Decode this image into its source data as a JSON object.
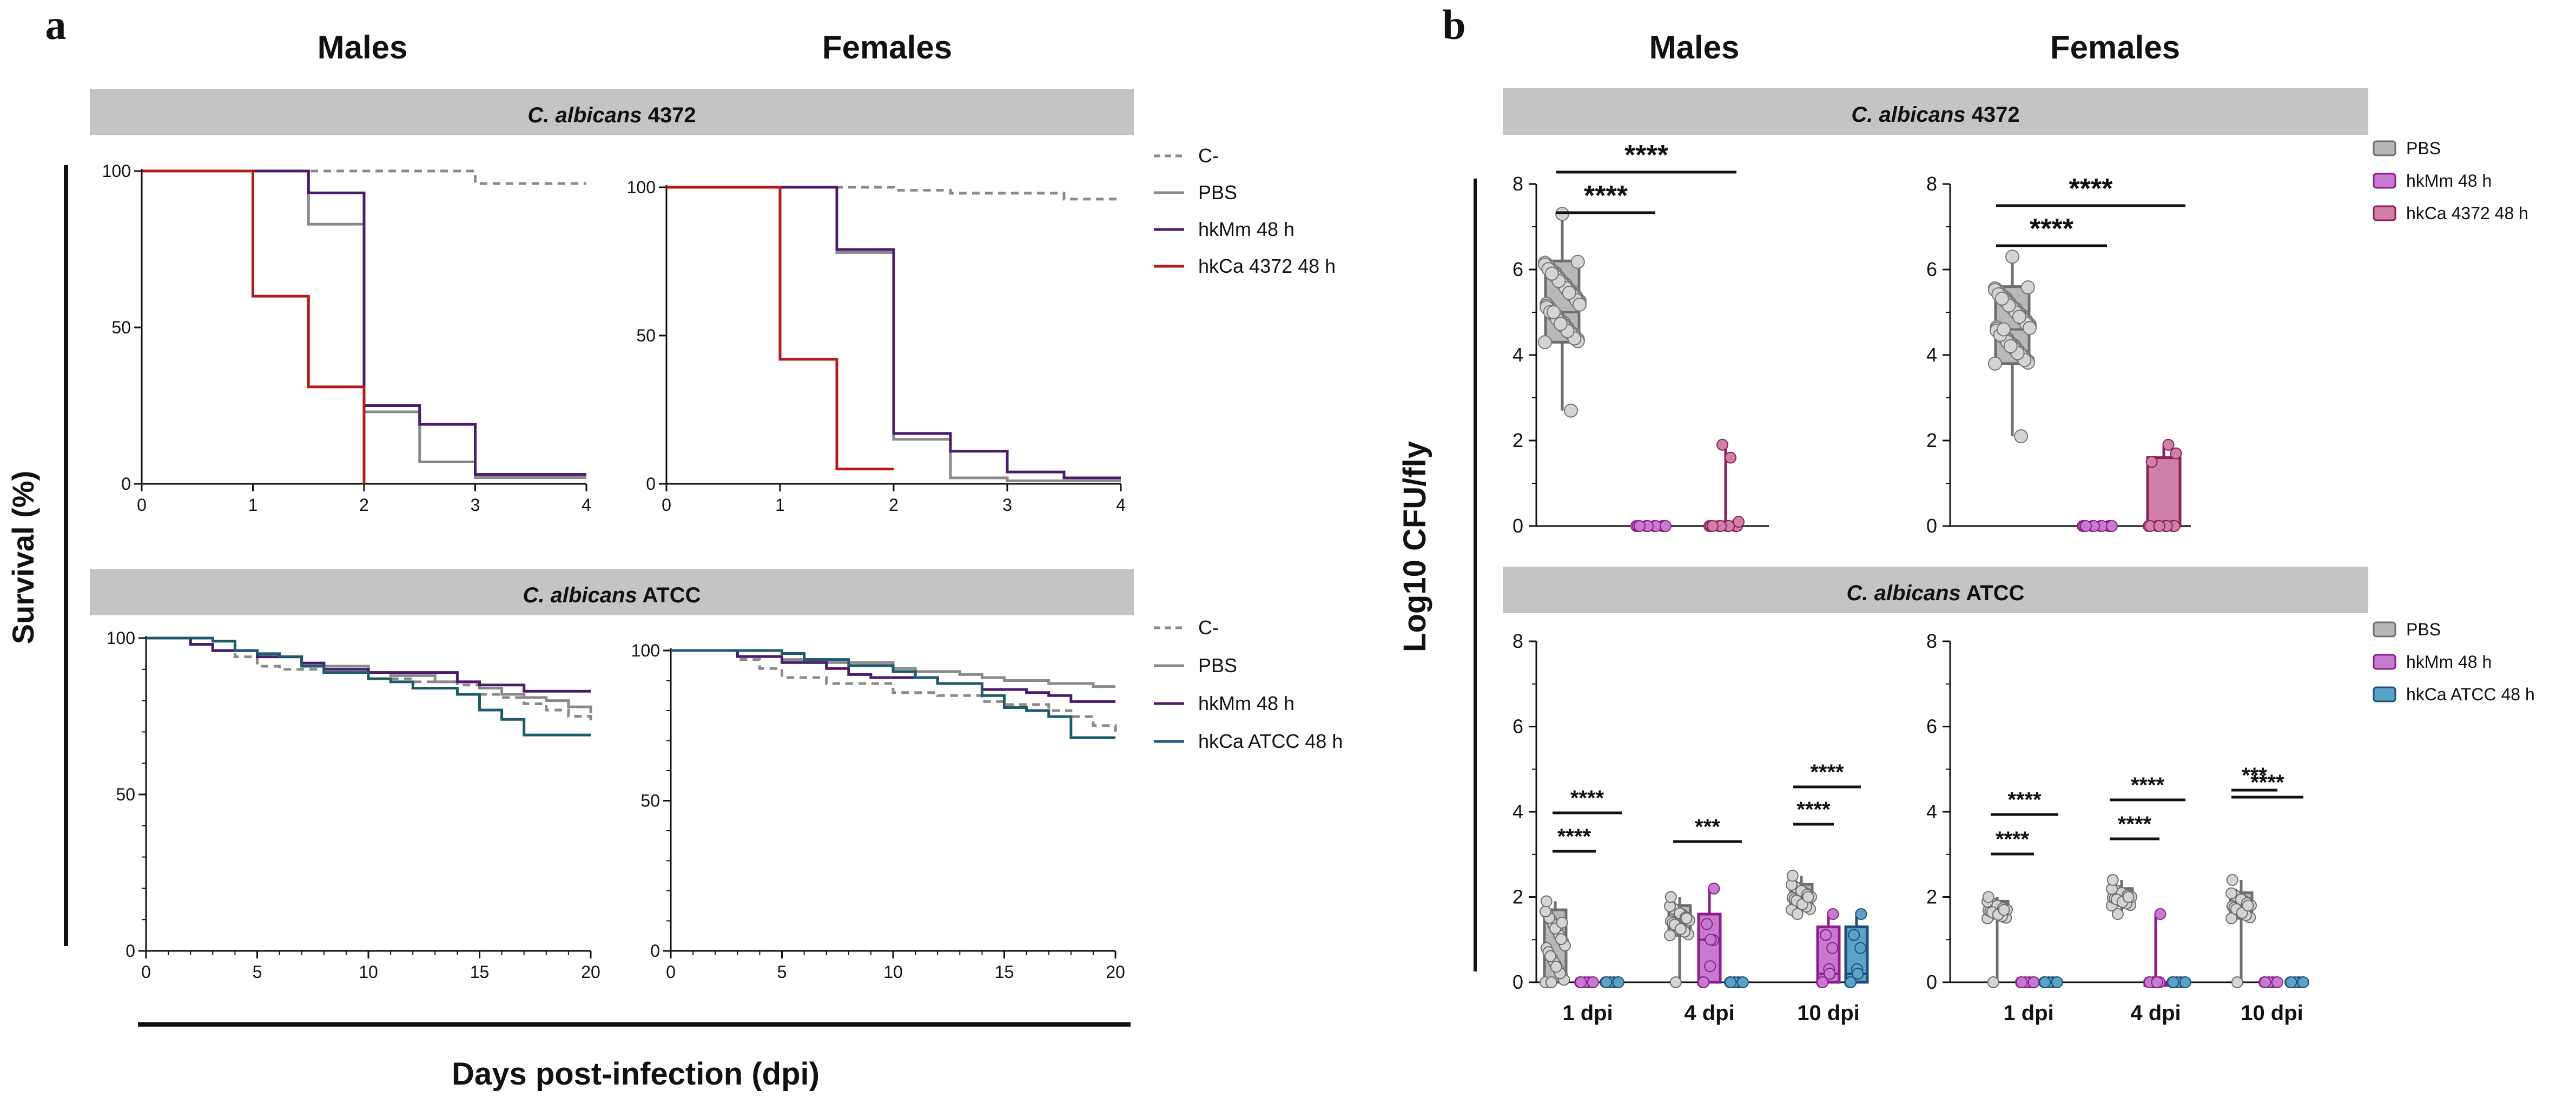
{
  "colors": {
    "control": "#8a8a8a",
    "pbs": "#8a8a8a",
    "hkmm": "#4a1a6b",
    "hkca4372": "#b31b1b",
    "hkcaatcc": "#1f5a6b",
    "cfu_pbs_fill": "#b8b8b8",
    "cfu_pbs_edge": "#6e6e6e",
    "cfu_hkmm_fill": "#c67bd1",
    "cfu_hkmm_edge": "#8e1e8e",
    "cfu_hkca4372_fill": "#d07fa6",
    "cfu_hkca4372_edge": "#8e1e5e",
    "cfu_hkcaatcc_fill": "#5aa3c6",
    "cfu_hkcaatcc_edge": "#1f4f7a",
    "banner": "#c4c4c4"
  },
  "panel_a": {
    "label": "a",
    "col_titles": [
      "Males",
      "Females"
    ],
    "banner_top": {
      "italic": "C. albicans",
      "rest": " 4372"
    },
    "banner_bottom": {
      "italic": "C. albicans",
      "rest": " ATCC"
    },
    "y_axis_title": "Survival (%)",
    "x_axis_title": "Days post-infection (dpi)",
    "legend_top": [
      "C-",
      "PBS",
      "hkMm 48 h",
      "hkCa 4372 48 h"
    ],
    "legend_bottom": [
      "C-",
      "PBS",
      "hkMm 48 h",
      "hkCa ATCC 48 h"
    ]
  },
  "panel_b": {
    "label": "b",
    "col_titles": [
      "Males",
      "Females"
    ],
    "banner_top": {
      "italic": "C. albicans",
      "rest": " 4372"
    },
    "banner_bottom": {
      "italic": "C. albicans",
      "rest": " ATCC"
    },
    "y_axis_title": "Log10 CFU/fly",
    "legend_top": [
      "PBS",
      "hkMm 48 h",
      "hkCa 4372 48 h"
    ],
    "legend_bottom": [
      "PBS",
      "hkMm 48 h",
      "hkCa ATCC 48 h"
    ]
  },
  "chart_data": [
    {
      "id": "a_m_4372",
      "type": "line",
      "title": "Males — C. albicans 4372",
      "xlabel": "Days post-infection (dpi)",
      "ylabel": "Survival (%)",
      "xlim": [
        0,
        4
      ],
      "ylim": [
        0,
        100
      ],
      "xticks": [
        0,
        1,
        2,
        3,
        4
      ],
      "yticks": [
        0,
        50,
        100
      ],
      "series": [
        {
          "name": "C-",
          "step": true,
          "dashed": true,
          "x": [
            0,
            3,
            3,
            4
          ],
          "y": [
            100,
            100,
            96,
            96
          ]
        },
        {
          "name": "PBS",
          "step": true,
          "x": [
            0,
            1.5,
            2,
            2.5,
            3,
            4
          ],
          "y": [
            100,
            83,
            23,
            7,
            2,
            2
          ]
        },
        {
          "name": "hkMm 48 h",
          "step": true,
          "x": [
            0,
            1.5,
            2,
            2.5,
            3,
            4
          ],
          "y": [
            100,
            93,
            25,
            19,
            3,
            3
          ]
        },
        {
          "name": "hkCa 4372 48 h",
          "step": true,
          "x": [
            0,
            1,
            1.5,
            2
          ],
          "y": [
            100,
            60,
            31,
            0
          ]
        }
      ]
    },
    {
      "id": "a_f_4372",
      "type": "line",
      "title": "Females — C. albicans 4372",
      "xlabel": "Days post-infection (dpi)",
      "ylabel": "Survival (%)",
      "xlim": [
        0,
        4
      ],
      "ylim": [
        0,
        100
      ],
      "xticks": [
        0,
        1,
        2,
        3,
        4
      ],
      "yticks": [
        0,
        50,
        100
      ],
      "series": [
        {
          "name": "C-",
          "step": true,
          "dashed": true,
          "x": [
            0,
            2,
            2.5,
            3.5,
            4
          ],
          "y": [
            100,
            99,
            98,
            96,
            96
          ]
        },
        {
          "name": "PBS",
          "step": true,
          "x": [
            0,
            1.5,
            2,
            2.5,
            3,
            4
          ],
          "y": [
            100,
            78,
            15,
            2,
            1,
            1
          ]
        },
        {
          "name": "hkMm 48 h",
          "step": true,
          "x": [
            0,
            1.5,
            2,
            2.5,
            3,
            3.5,
            4
          ],
          "y": [
            100,
            79,
            17,
            11,
            4,
            2,
            2
          ]
        },
        {
          "name": "hkCa 4372 48 h",
          "step": true,
          "x": [
            0,
            1,
            1.5,
            2
          ],
          "y": [
            100,
            42,
            5,
            5
          ]
        }
      ]
    },
    {
      "id": "a_m_atcc",
      "type": "line",
      "title": "Males — C. albicans ATCC",
      "xlabel": "Days post-infection (dpi)",
      "ylabel": "Survival (%)",
      "xlim": [
        0,
        20
      ],
      "ylim": [
        0,
        100
      ],
      "xticks": [
        0,
        5,
        10,
        15,
        20
      ],
      "yticks": [
        0,
        50,
        100
      ],
      "series": [
        {
          "name": "C-",
          "step": true,
          "dashed": true,
          "x": [
            0,
            2,
            3,
            4,
            5,
            6,
            8,
            10,
            12,
            14,
            15,
            16,
            17,
            18,
            19,
            20
          ],
          "y": [
            100,
            98,
            96,
            94,
            91,
            90,
            89,
            87,
            86,
            85,
            82,
            81,
            79,
            77,
            75,
            73
          ]
        },
        {
          "name": "PBS",
          "step": true,
          "x": [
            0,
            2,
            3,
            5,
            7,
            8,
            10,
            11,
            13,
            15,
            16,
            17,
            18,
            19,
            20
          ],
          "y": [
            100,
            98,
            96,
            94,
            92,
            91,
            89,
            88,
            86,
            84,
            82,
            81,
            80,
            78,
            76
          ]
        },
        {
          "name": "hkMm 48 h",
          "step": true,
          "x": [
            0,
            2,
            3,
            5,
            7,
            8,
            10,
            14,
            15,
            17,
            20
          ],
          "y": [
            100,
            98,
            96,
            94,
            92,
            90,
            89,
            86,
            85,
            83,
            83
          ]
        },
        {
          "name": "hkCa ATCC 48 h",
          "step": true,
          "x": [
            0,
            3,
            4,
            5,
            6,
            7,
            8,
            10,
            11,
            12,
            14,
            15,
            16,
            17,
            20
          ],
          "y": [
            100,
            99,
            96,
            95,
            94,
            91,
            89,
            87,
            86,
            84,
            82,
            77,
            74,
            69,
            69
          ]
        }
      ]
    },
    {
      "id": "a_f_atcc",
      "type": "line",
      "title": "Females — C. albicans ATCC",
      "xlabel": "Days post-infection (dpi)",
      "ylabel": "Survival (%)",
      "xlim": [
        0,
        20
      ],
      "ylim": [
        0,
        100
      ],
      "xticks": [
        0,
        5,
        10,
        15,
        20
      ],
      "yticks": [
        0,
        50,
        100
      ],
      "series": [
        {
          "name": "C-",
          "step": true,
          "dashed": true,
          "x": [
            0,
            3,
            4,
            5,
            7,
            10,
            12,
            14,
            15,
            17,
            18,
            19,
            20
          ],
          "y": [
            100,
            97,
            94,
            91,
            89,
            86,
            85,
            83,
            82,
            80,
            78,
            75,
            73
          ]
        },
        {
          "name": "PBS",
          "step": true,
          "x": [
            0,
            3,
            5,
            7,
            10,
            11,
            13,
            14,
            15,
            17,
            19,
            20
          ],
          "y": [
            100,
            98,
            97,
            96,
            94,
            93,
            92,
            91,
            90,
            89,
            88,
            88
          ]
        },
        {
          "name": "hkMm 48 h",
          "step": true,
          "x": [
            0,
            3,
            5,
            7,
            8,
            9,
            12,
            14,
            16,
            17,
            18,
            20
          ],
          "y": [
            100,
            98,
            96,
            94,
            92,
            91,
            89,
            87,
            86,
            85,
            83,
            83
          ]
        },
        {
          "name": "hkCa ATCC 48 h",
          "step": true,
          "x": [
            0,
            5,
            6,
            8,
            10,
            11,
            12,
            14,
            15,
            16,
            17,
            18,
            20
          ],
          "y": [
            100,
            99,
            97,
            95,
            93,
            91,
            89,
            85,
            81,
            80,
            78,
            71,
            71
          ]
        }
      ]
    },
    {
      "id": "b_m_4372",
      "type": "box",
      "title": "Males — C. albicans 4372",
      "ylabel": "Log10 CFU/fly",
      "ylim": [
        0,
        8
      ],
      "yticks": [
        0,
        2,
        4,
        6,
        8
      ],
      "groups": [
        {
          "name": "PBS",
          "min": 2.7,
          "q1": 4.3,
          "median": 5.0,
          "q3": 6.2,
          "max": 7.3
        },
        {
          "name": "hkMm 48 h",
          "min": 0,
          "q1": 0,
          "median": 0,
          "q3": 0,
          "max": 0
        },
        {
          "name": "hkCa 4372 48 h",
          "min": 0,
          "q1": 0,
          "median": 0,
          "q3": 0.1,
          "max": 1.9
        }
      ],
      "significance": [
        {
          "groups": [
            1,
            2
          ],
          "label": "****"
        },
        {
          "groups": [
            1,
            3
          ],
          "label": "****"
        }
      ]
    },
    {
      "id": "b_f_4372",
      "type": "box",
      "title": "Females — C. albicans 4372",
      "ylabel": "Log10 CFU/fly",
      "ylim": [
        0,
        8
      ],
      "yticks": [
        0,
        2,
        4,
        6,
        8
      ],
      "groups": [
        {
          "name": "PBS",
          "min": 2.1,
          "q1": 3.8,
          "median": 4.6,
          "q3": 5.6,
          "max": 6.3
        },
        {
          "name": "hkMm 48 h",
          "min": 0,
          "q1": 0,
          "median": 0,
          "q3": 0,
          "max": 0
        },
        {
          "name": "hkCa 4372 48 h",
          "min": 0,
          "q1": 0,
          "median": 0,
          "q3": 1.6,
          "max": 1.9
        }
      ],
      "significance": [
        {
          "groups": [
            1,
            2
          ],
          "label": "****"
        },
        {
          "groups": [
            1,
            3
          ],
          "label": "****"
        }
      ]
    },
    {
      "id": "b_m_atcc",
      "type": "box",
      "title": "Males — C. albicans ATCC",
      "ylabel": "Log10 CFU/fly",
      "ylim": [
        0,
        8
      ],
      "yticks": [
        0,
        2,
        4,
        6,
        8
      ],
      "categories": [
        "1 dpi",
        "4 dpi",
        "10 dpi"
      ],
      "series": [
        {
          "name": "PBS",
          "boxes": [
            {
              "min": 0,
              "q1": 0,
              "median": 1.4,
              "q3": 1.7,
              "max": 1.9
            },
            {
              "min": 0,
              "q1": 1.1,
              "median": 1.5,
              "q3": 1.8,
              "max": 2.0
            },
            {
              "min": 1.6,
              "q1": 1.7,
              "median": 2.0,
              "q3": 2.3,
              "max": 2.5
            }
          ]
        },
        {
          "name": "hkMm 48 h",
          "boxes": [
            {
              "min": 0,
              "q1": 0,
              "median": 0,
              "q3": 0,
              "max": 0
            },
            {
              "min": 0,
              "q1": 0,
              "median": 1.0,
              "q3": 1.6,
              "max": 2.2
            },
            {
              "min": 0,
              "q1": 0,
              "median": 0.2,
              "q3": 1.3,
              "max": 1.6
            }
          ]
        },
        {
          "name": "hkCa ATCC 48 h",
          "boxes": [
            {
              "min": 0,
              "q1": 0,
              "median": 0,
              "q3": 0,
              "max": 0
            },
            {
              "min": 0,
              "q1": 0,
              "median": 0,
              "q3": 0,
              "max": 0
            },
            {
              "min": 0,
              "q1": 0,
              "median": 0.2,
              "q3": 1.3,
              "max": 1.6
            }
          ]
        }
      ],
      "significance": [
        {
          "category": "1 dpi",
          "groups": [
            1,
            2
          ],
          "label": "****"
        },
        {
          "category": "1 dpi",
          "groups": [
            1,
            3
          ],
          "label": "****"
        },
        {
          "category": "4 dpi",
          "groups": [
            1,
            3
          ],
          "label": "***"
        },
        {
          "category": "10 dpi",
          "groups": [
            1,
            2
          ],
          "label": "****"
        },
        {
          "category": "10 dpi",
          "groups": [
            1,
            3
          ],
          "label": "****"
        }
      ]
    },
    {
      "id": "b_f_atcc",
      "type": "box",
      "title": "Females — C. albicans ATCC",
      "ylabel": "Log10 CFU/fly",
      "ylim": [
        0,
        8
      ],
      "yticks": [
        0,
        2,
        4,
        6,
        8
      ],
      "categories": [
        "1 dpi",
        "4 dpi",
        "10 dpi"
      ],
      "series": [
        {
          "name": "PBS",
          "boxes": [
            {
              "min": 0,
              "q1": 1.5,
              "median": 1.7,
              "q3": 1.9,
              "max": 2.0
            },
            {
              "min": 1.6,
              "q1": 1.8,
              "median": 2.0,
              "q3": 2.2,
              "max": 2.4
            },
            {
              "min": 0,
              "q1": 1.5,
              "median": 1.8,
              "q3": 2.1,
              "max": 2.4
            }
          ]
        },
        {
          "name": "hkMm 48 h",
          "boxes": [
            {
              "min": 0,
              "q1": 0,
              "median": 0,
              "q3": 0,
              "max": 0
            },
            {
              "min": 0,
              "q1": 0,
              "median": 0,
              "q3": 0,
              "max": 1.6
            },
            {
              "min": 0,
              "q1": 0,
              "median": 0,
              "q3": 0,
              "max": 0
            }
          ]
        },
        {
          "name": "hkCa ATCC 48 h",
          "boxes": [
            {
              "min": 0,
              "q1": 0,
              "median": 0,
              "q3": 0,
              "max": 0
            },
            {
              "min": 0,
              "q1": 0,
              "median": 0,
              "q3": 0,
              "max": 0
            },
            {
              "min": 0,
              "q1": 0,
              "median": 0,
              "q3": 0,
              "max": 0
            }
          ]
        }
      ],
      "significance": [
        {
          "category": "1 dpi",
          "groups": [
            1,
            2
          ],
          "label": "****"
        },
        {
          "category": "1 dpi",
          "groups": [
            1,
            3
          ],
          "label": "****"
        },
        {
          "category": "4 dpi",
          "groups": [
            1,
            2
          ],
          "label": "****"
        },
        {
          "category": "4 dpi",
          "groups": [
            1,
            3
          ],
          "label": "****"
        },
        {
          "category": "10 dpi",
          "groups": [
            1,
            2
          ],
          "label": "***"
        },
        {
          "category": "10 dpi",
          "groups": [
            1,
            3
          ],
          "label": "****"
        }
      ]
    }
  ]
}
